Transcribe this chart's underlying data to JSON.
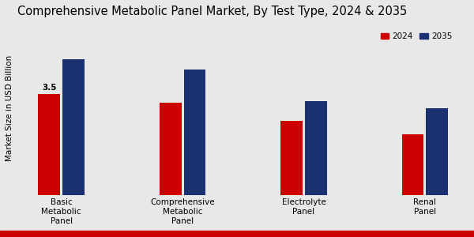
{
  "title": "Comprehensive Metabolic Panel Market, By Test Type, 2024 & 2035",
  "ylabel": "Market Size in USD Billion",
  "categories": [
    "Basic\nMetabolic\nPanel",
    "Comprehensive\nMetabolic\nPanel",
    "Electrolyte\nPanel",
    "Renal\nPanel"
  ],
  "values_2024": [
    3.5,
    3.2,
    2.55,
    2.1
  ],
  "values_2035": [
    4.7,
    4.35,
    3.25,
    3.0
  ],
  "color_2024": "#cc0000",
  "color_2035": "#1a3070",
  "bar_width": 0.18,
  "annotation_text": "3.5",
  "background_color": "#e8e8e8",
  "legend_labels": [
    "2024",
    "2035"
  ],
  "ylim": [
    0,
    6.0
  ],
  "title_fontsize": 10.5,
  "label_fontsize": 7.5,
  "tick_fontsize": 7.5,
  "bottom_bar_color": "#cc0000",
  "bottom_bar_height": 0.028
}
